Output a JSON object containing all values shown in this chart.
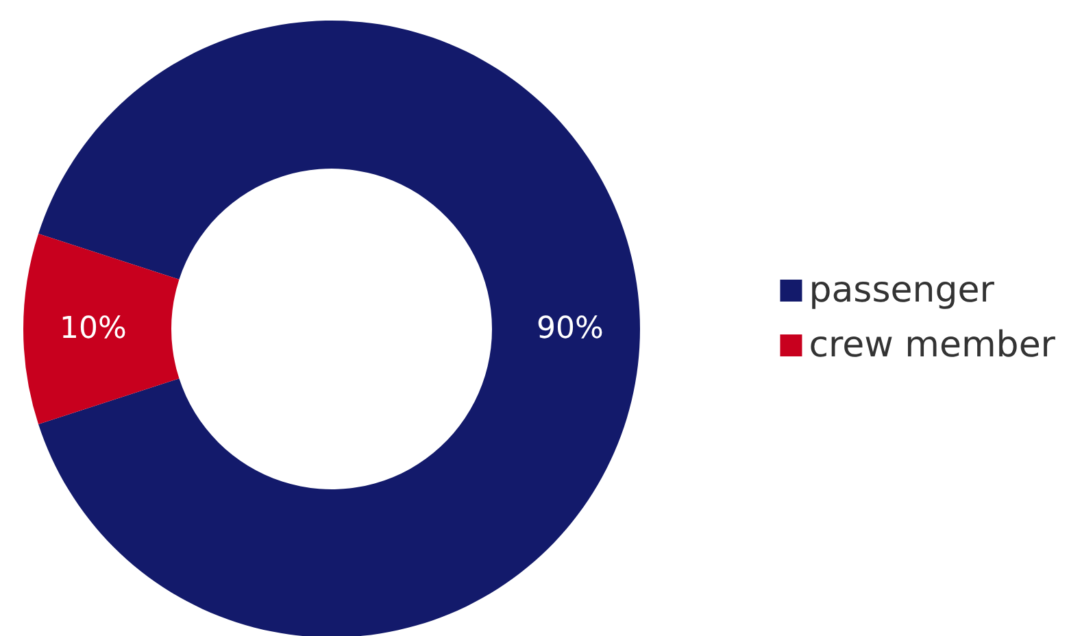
{
  "chart_data": {
    "type": "donut",
    "categories": [
      "passenger",
      "crew member"
    ],
    "values": [
      90,
      10
    ],
    "colors": [
      "#131a6b",
      "#c8001e"
    ],
    "value_labels": [
      "90%",
      "10%"
    ],
    "legend": "right"
  }
}
